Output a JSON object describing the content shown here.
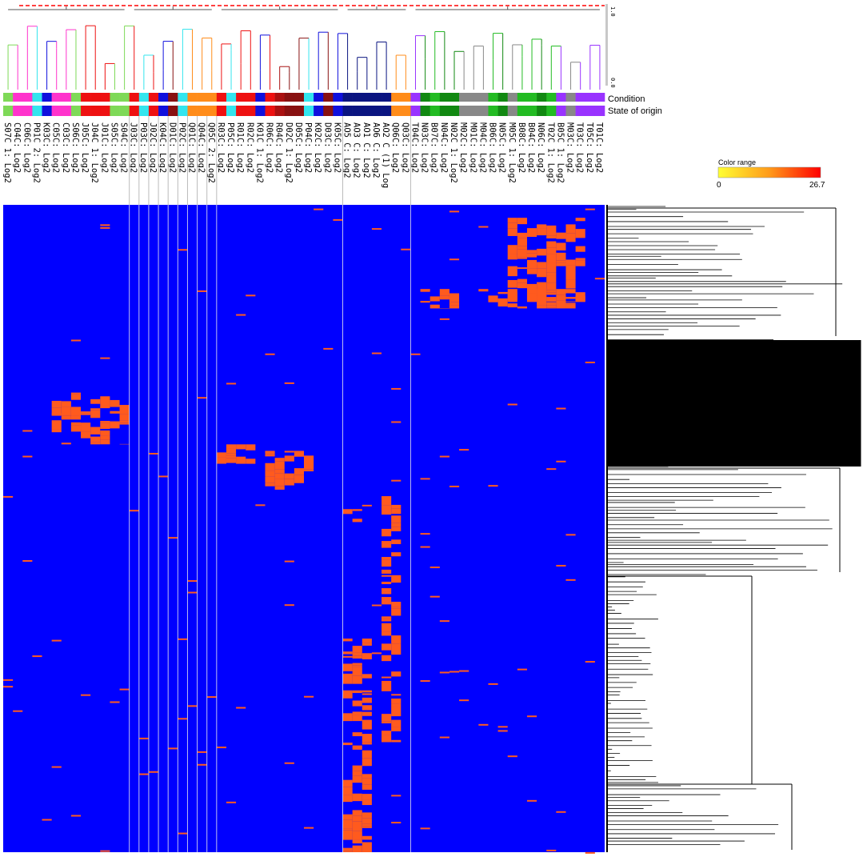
{
  "chart_data": {
    "type": "heatmap",
    "title": "",
    "columns": [
      "S07C 1: Log2",
      "C04C: Log2",
      "C06C: Log2",
      "P01C 2: Log2",
      "K03C: Log2",
      "C05C: Log2",
      "C03C: Log2",
      "S06C: Log2",
      "J05C: Log2",
      "J04C 1: Log2",
      "J01C: Log2",
      "S05C: Log2",
      "S04C: Log2",
      "J03C: Log2",
      "P03C: Log2",
      "J02C: Log2",
      "K04C: Log2",
      "D01C: Log2",
      "P02C: Log2",
      "Q01C: Log2",
      "Q04C: Log2",
      "Q05C 2: Log2",
      "R03C: Log2",
      "P05C: Log2",
      "R01C: Log2",
      "R02C: Log2",
      "K01C 1: Log2",
      "R06C: Log2",
      "R04C: Log2",
      "D02C 1: Log2",
      "D05C: Log2",
      "P04C: Log2",
      "K02C: Log2",
      "D03C: Log2",
      "K05C: Log2",
      "AO5 C: Log2",
      "AO3 C: Log2",
      "AO1 C: Log2",
      "AO6 C: Log2",
      "AO2 C (1) Log",
      "Q06C: Log2",
      "Q03C: Log2",
      "T04C: Log2",
      "N03C: Log2",
      "B07C: Log2",
      "N04C: Log2",
      "N02C 1: Log2",
      "M02C: Log2",
      "M01C: Log2",
      "M04C: Log2",
      "B06C: Log2",
      "N05C: Log2",
      "M05C 1: Log2",
      "B08C: Log2",
      "B04C: Log2",
      "N06C: Log2",
      "T02C 1: Log2",
      "B05C 1: Log2",
      "M03C: Log2",
      "T03C: Log2",
      "T05C: Log2",
      "T01C: Log2"
    ],
    "condition_colors": [
      "#7ed957",
      "#ff33cc",
      "#ff33cc",
      "#33e5ee",
      "#1010dd",
      "#ff33cc",
      "#ff33cc",
      "#7ed957",
      "#ee1111",
      "#ee1111",
      "#ee1111",
      "#7ed957",
      "#7ed957",
      "#ee1111",
      "#33e5ee",
      "#ee1111",
      "#1010dd",
      "#881111",
      "#33e5ee",
      "#ff8c1a",
      "#ff8c1a",
      "#ff8c1a",
      "#ee1111",
      "#33e5ee",
      "#ee1111",
      "#ee1111",
      "#1010dd",
      "#ee1111",
      "#aa1111",
      "#881111",
      "#881111",
      "#33e5ee",
      "#1010dd",
      "#881111",
      "#1010dd",
      "#0a1480",
      "#0a1480",
      "#0a1480",
      "#0a1480",
      "#0a1480",
      "#ff8c1a",
      "#ff8c1a",
      "#9933ff",
      "#118811",
      "#22bb22",
      "#118811",
      "#118811",
      "#888888",
      "#888888",
      "#888888",
      "#22bb22",
      "#118811",
      "#888888",
      "#22bb22",
      "#22bb22",
      "#118811",
      "#22bb22",
      "#9933ff",
      "#888888",
      "#9933ff",
      "#9933ff",
      "#9933ff"
    ],
    "origin_colors": [
      "#7ed957",
      "#ff33cc",
      "#ff33cc",
      "#33e5ee",
      "#1010dd",
      "#ff33cc",
      "#ff33cc",
      "#7ed957",
      "#ee1111",
      "#ee1111",
      "#ee1111",
      "#7ed957",
      "#7ed957",
      "#ee1111",
      "#33e5ee",
      "#ee1111",
      "#1010dd",
      "#881111",
      "#33e5ee",
      "#ff8c1a",
      "#ff8c1a",
      "#ff8c1a",
      "#ee1111",
      "#33e5ee",
      "#ee1111",
      "#ee1111",
      "#1010dd",
      "#ee1111",
      "#aa1111",
      "#881111",
      "#881111",
      "#33e5ee",
      "#1010dd",
      "#881111",
      "#1010dd",
      "#0a1480",
      "#0a1480",
      "#0a1480",
      "#0a1480",
      "#0a1480",
      "#ff8c1a",
      "#ff8c1a",
      "#9933ff",
      "#118811",
      "#22bb22",
      "#118811",
      "#118811",
      "#888888",
      "#888888",
      "#888888",
      "#22bb22",
      "#118811",
      "#888888",
      "#22bb22",
      "#22bb22",
      "#118811",
      "#22bb22",
      "#9933ff",
      "#888888",
      "#9933ff",
      "#9933ff",
      "#9933ff"
    ],
    "column_dendrogram_colors": [
      "#7ed957",
      "#ff33cc",
      "#ff33cc",
      "#33e5ee",
      "#1010dd",
      "#ff33cc",
      "#ff33cc",
      "#7ed957",
      "#ee1111",
      "#ee1111",
      "#ee1111",
      "#7ed957",
      "#7ed957",
      "#ee1111",
      "#33e5ee",
      "#ee1111",
      "#1010dd",
      "#881111",
      "#33e5ee",
      "#ff8c1a",
      "#ff8c1a",
      "#ff8c1a",
      "#ee1111",
      "#33e5ee",
      "#ee1111",
      "#ee1111",
      "#1010dd",
      "#ee1111",
      "#aa1111",
      "#881111",
      "#881111",
      "#33e5ee",
      "#1010dd",
      "#881111",
      "#1010dd",
      "#0a1480",
      "#0a1480",
      "#0a1480",
      "#0a1480",
      "#0a1480",
      "#ff8c1a",
      "#ff8c1a",
      "#9933ff",
      "#118811",
      "#22bb22",
      "#118811",
      "#118811",
      "#888888",
      "#888888",
      "#888888",
      "#22bb22",
      "#118811",
      "#888888",
      "#22bb22",
      "#22bb22",
      "#118811",
      "#22bb22",
      "#9933ff",
      "#888888",
      "#9933ff",
      "#9933ff",
      "#9933ff"
    ],
    "row_annotations": [
      "Condition",
      "State of origin"
    ],
    "color_scale": {
      "title": "Color range",
      "min": 0,
      "max": 26.7,
      "min_label": "0",
      "max_label": "26.7",
      "low_color": "#ffff33",
      "high_color": "#ff0000",
      "background_color": "#0000ff",
      "hit_color": "#ff5a1e"
    },
    "dendrogram_scale": {
      "top_label": "1.0",
      "bottom_label": "0.0",
      "cut_line_color": "#ff0000"
    },
    "blocks": [
      {
        "col_start": 52,
        "col_end": 59,
        "row_start": 0.02,
        "row_end": 0.15
      },
      {
        "col_start": 43,
        "col_end": 59,
        "row_start": 0.13,
        "row_end": 0.16
      },
      {
        "col_start": 5,
        "col_end": 12,
        "row_start": 0.29,
        "row_end": 0.37
      },
      {
        "col_start": 22,
        "col_end": 25,
        "row_start": 0.37,
        "row_end": 0.4
      },
      {
        "col_start": 27,
        "col_end": 31,
        "row_start": 0.38,
        "row_end": 0.44
      },
      {
        "col_start": 39,
        "col_end": 40,
        "row_start": 0.45,
        "row_end": 0.83
      },
      {
        "col_start": 35,
        "col_end": 36,
        "row_start": 0.47,
        "row_end": 0.49
      },
      {
        "col_start": 35,
        "col_end": 37,
        "row_start": 0.67,
        "row_end": 0.74
      },
      {
        "col_start": 35,
        "col_end": 37,
        "row_start": 0.75,
        "row_end": 1.0
      }
    ]
  }
}
